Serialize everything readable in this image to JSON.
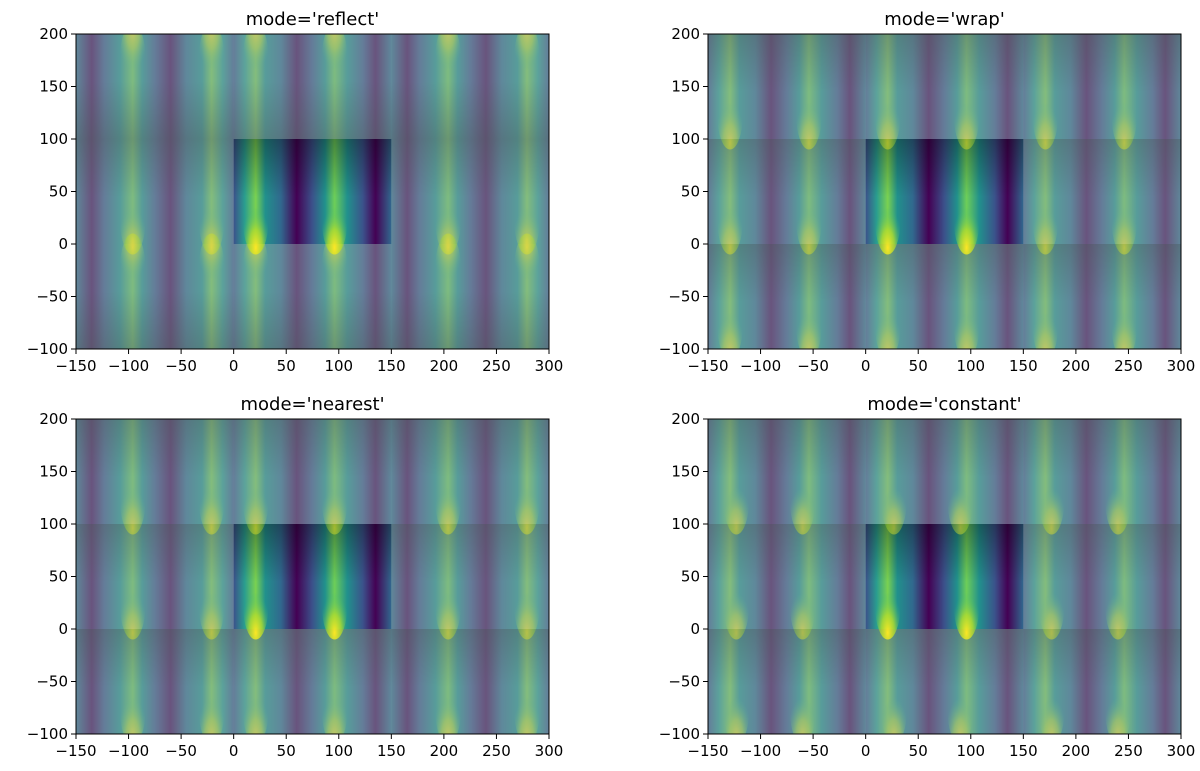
{
  "chart_data": [
    {
      "type": "heatmap",
      "title": "mode='reflect'",
      "mode": "reflect",
      "xlim": [
        -150,
        300
      ],
      "ylim": [
        -100,
        200
      ],
      "xticks": [
        -150,
        -100,
        -50,
        0,
        50,
        100,
        150,
        200,
        250,
        300
      ],
      "yticks": [
        -100,
        -50,
        0,
        50,
        100,
        150,
        200
      ],
      "xtick_labels": [
        "−150",
        "−100",
        "−50",
        "0",
        "50",
        "100",
        "150",
        "200",
        "250",
        "300"
      ],
      "ytick_labels": [
        "−100",
        "−50",
        "0",
        "50",
        "100",
        "150",
        "200"
      ],
      "original_extent": {
        "x": [
          0,
          150
        ],
        "y": [
          0,
          100
        ]
      },
      "colormap": "viridis",
      "tile_alpha": 0.5
    },
    {
      "type": "heatmap",
      "title": "mode='wrap'",
      "mode": "wrap",
      "xlim": [
        -150,
        300
      ],
      "ylim": [
        -100,
        200
      ],
      "xticks": [
        -150,
        -100,
        -50,
        0,
        50,
        100,
        150,
        200,
        250,
        300
      ],
      "yticks": [
        -100,
        -50,
        0,
        50,
        100,
        150,
        200
      ],
      "xtick_labels": [
        "−150",
        "−100",
        "−50",
        "0",
        "50",
        "100",
        "150",
        "200",
        "250",
        "300"
      ],
      "ytick_labels": [
        "−100",
        "−50",
        "0",
        "50",
        "100",
        "150",
        "200"
      ],
      "original_extent": {
        "x": [
          0,
          150
        ],
        "y": [
          0,
          100
        ]
      },
      "colormap": "viridis",
      "tile_alpha": 0.5
    },
    {
      "type": "heatmap",
      "title": "mode='nearest'",
      "mode": "nearest",
      "xlim": [
        -150,
        300
      ],
      "ylim": [
        -100,
        200
      ],
      "xticks": [
        -150,
        -100,
        -50,
        0,
        50,
        100,
        150,
        200,
        250,
        300
      ],
      "yticks": [
        -100,
        -50,
        0,
        50,
        100,
        150,
        200
      ],
      "xtick_labels": [
        "−150",
        "−100",
        "−50",
        "0",
        "50",
        "100",
        "150",
        "200",
        "250",
        "300"
      ],
      "ytick_labels": [
        "−100",
        "−50",
        "0",
        "50",
        "100",
        "150",
        "200"
      ],
      "original_extent": {
        "x": [
          0,
          150
        ],
        "y": [
          0,
          100
        ]
      },
      "colormap": "viridis",
      "tile_alpha": 0.5
    },
    {
      "type": "heatmap",
      "title": "mode='constant'",
      "mode": "constant",
      "xlim": [
        -150,
        300
      ],
      "ylim": [
        -100,
        200
      ],
      "xticks": [
        -150,
        -100,
        -50,
        0,
        50,
        100,
        150,
        200,
        250,
        300
      ],
      "yticks": [
        -100,
        -50,
        0,
        50,
        100,
        150,
        200
      ],
      "xtick_labels": [
        "−150",
        "−100",
        "−50",
        "0",
        "50",
        "100",
        "150",
        "200",
        "250",
        "300"
      ],
      "ytick_labels": [
        "−100",
        "−50",
        "0",
        "50",
        "100",
        "150",
        "200"
      ],
      "original_extent": {
        "x": [
          0,
          150
        ],
        "y": [
          0,
          100
        ]
      },
      "colormap": "viridis",
      "tile_alpha": 0.5
    }
  ]
}
